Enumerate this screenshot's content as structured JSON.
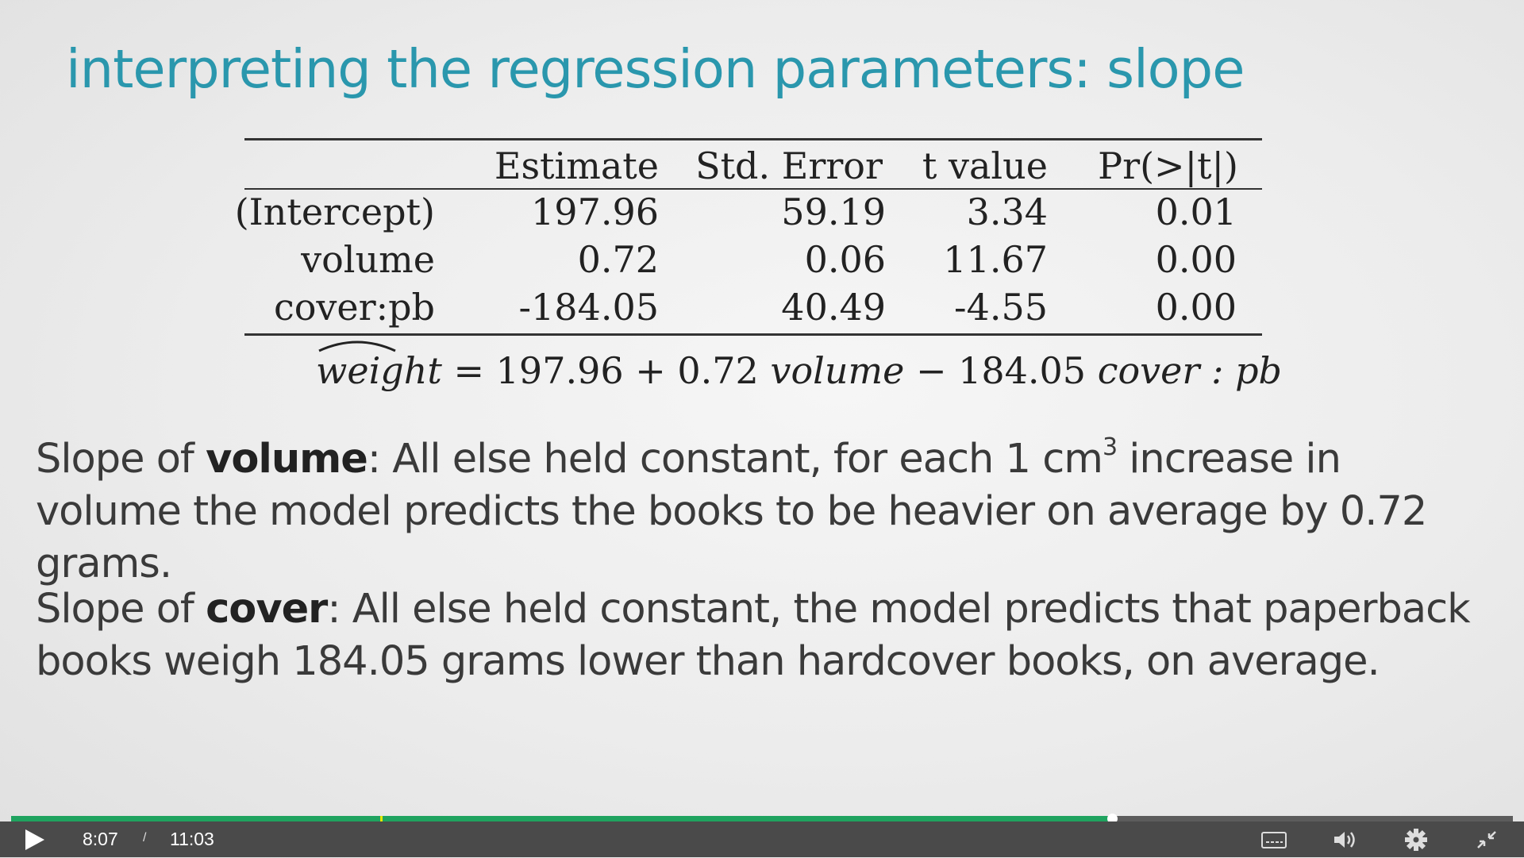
{
  "slide": {
    "title": "interpreting the regression parameters: slope",
    "table": {
      "headers": [
        "",
        "Estimate",
        "Std. Error",
        "t value",
        "Pr(>|t|)"
      ],
      "rows": [
        [
          "(Intercept)",
          "197.96",
          "59.19",
          "3.34",
          "0.01"
        ],
        [
          "volume",
          "0.72",
          "0.06",
          "11.67",
          "0.00"
        ],
        [
          "cover:pb",
          "-184.05",
          "40.49",
          "-4.55",
          "0.00"
        ]
      ]
    },
    "equation": {
      "lhs": "weight",
      "rhs_1": " = 197.96 + 0.72 ",
      "var_1": "volume",
      "rhs_2": " − 184.05 ",
      "var_2": "cover : pb"
    },
    "paragraph_1": {
      "lead": "Slope of ",
      "term": "volume",
      "text_a": ": All else held constant, for each 1 cm",
      "sup": "3",
      "text_b": " increase in volume the model predicts the books to be heavier on average by 0.72 grams."
    },
    "paragraph_2": {
      "lead": "Slope of ",
      "term": "cover",
      "text": ": All else held constant, the model predicts that paperback books weigh 184.05 grams lower than hardcover books, on average."
    }
  },
  "player": {
    "current_time": "8:07",
    "separator": "/",
    "total_time": "11:03",
    "progress_fraction": 0.733,
    "buffered_fraction": 1.0,
    "marker_fraction": 0.246,
    "colors": {
      "progress": "#1fa35f",
      "marker": "#e6e600",
      "bar": "#4a4a4a"
    },
    "icons": [
      "play-icon",
      "captions-icon",
      "volume-icon",
      "settings-gear-icon",
      "exit-fullscreen-icon"
    ]
  }
}
